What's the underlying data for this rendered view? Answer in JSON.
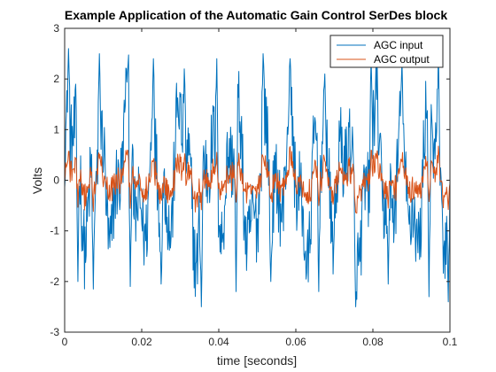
{
  "chart_data": {
    "type": "line",
    "title": "Example Application of the Automatic Gain Control SerDes block",
    "xlabel": "time [seconds]",
    "ylabel": "Volts",
    "xlim": [
      0,
      0.1
    ],
    "ylim": [
      -3,
      3
    ],
    "xticks": [
      0,
      0.02,
      0.04,
      0.06,
      0.08,
      0.1
    ],
    "xtick_labels": [
      "0",
      "0.02",
      "0.04",
      "0.06",
      "0.08",
      "0.1"
    ],
    "yticks": [
      -3,
      -2,
      -1,
      0,
      1,
      2,
      3
    ],
    "ytick_labels": [
      "-3",
      "-2",
      "-1",
      "0",
      "1",
      "2",
      "3"
    ],
    "grid": false,
    "legend_position": "top-right",
    "series": [
      {
        "name": "AGC input",
        "color": "#0072BD",
        "samples": 700,
        "envelope": {
          "mean": 0,
          "max": 2.65,
          "min": -2.55
        },
        "peaks": [
          {
            "t": 0.001,
            "v": 2.6
          },
          {
            "t": 0.0035,
            "v": -2.0
          },
          {
            "t": 0.009,
            "v": 2.5
          },
          {
            "t": 0.0075,
            "v": -2.15
          },
          {
            "t": 0.016,
            "v": 2.2
          },
          {
            "t": 0.017,
            "v": -2.1
          },
          {
            "t": 0.023,
            "v": 2.4
          },
          {
            "t": 0.025,
            "v": -2.05
          },
          {
            "t": 0.031,
            "v": 2.2
          },
          {
            "t": 0.0355,
            "v": -2.5
          },
          {
            "t": 0.0395,
            "v": 2.4
          },
          {
            "t": 0.0445,
            "v": -2.2
          },
          {
            "t": 0.0515,
            "v": 2.5
          },
          {
            "t": 0.0535,
            "v": -2.0
          },
          {
            "t": 0.0585,
            "v": 2.4
          },
          {
            "t": 0.066,
            "v": -2.2
          },
          {
            "t": 0.0675,
            "v": 2.1
          },
          {
            "t": 0.0755,
            "v": -2.5
          },
          {
            "t": 0.0795,
            "v": 2.4
          },
          {
            "t": 0.084,
            "v": -2.05
          },
          {
            "t": 0.0875,
            "v": 2.35
          },
          {
            "t": 0.0945,
            "v": -2.3
          },
          {
            "t": 0.097,
            "v": 2.6
          },
          {
            "t": 0.0995,
            "v": -2.4
          }
        ]
      },
      {
        "name": "AGC output",
        "color": "#D95319",
        "samples": 700,
        "envelope": {
          "mean": 0,
          "max": 0.7,
          "min": -0.65
        }
      }
    ]
  }
}
